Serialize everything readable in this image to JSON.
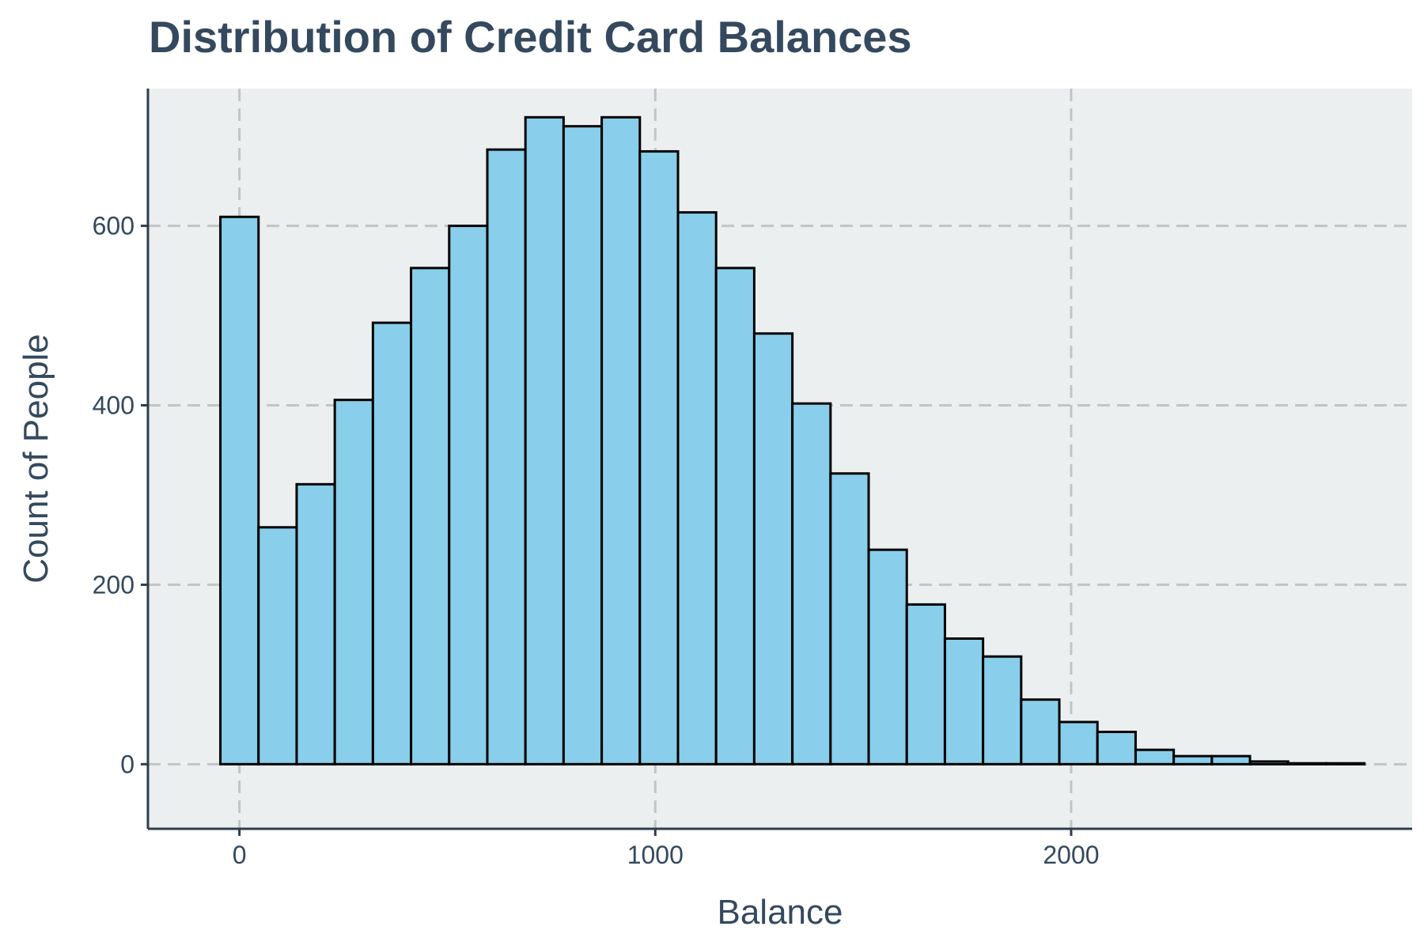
{
  "chart_data": {
    "type": "bar",
    "title": "Distribution of Credit Card Balances",
    "xlabel": "Balance",
    "ylabel": "Count of People",
    "xlim": [
      -220,
      2820
    ],
    "ylim": [
      -72,
      753
    ],
    "xticks": [
      0,
      1000,
      2000
    ],
    "yticks": [
      0,
      200,
      400,
      600
    ],
    "grid": true,
    "legend": "none",
    "bin_width": 91.7,
    "bin_start": -45.8,
    "values": [
      610,
      264,
      312,
      406,
      492,
      553,
      600,
      685,
      721,
      711,
      721,
      683,
      615,
      553,
      480,
      402,
      324,
      239,
      178,
      140,
      120,
      72,
      47,
      36,
      16,
      9,
      9,
      3,
      1,
      1
    ],
    "colors": {
      "bar_fill": "#89ceea",
      "bar_edge": "#000000",
      "panel_background": "#ebeff0",
      "grid": "#c2c4c6",
      "axis": "#2c3e50",
      "text": "#34495e"
    }
  }
}
